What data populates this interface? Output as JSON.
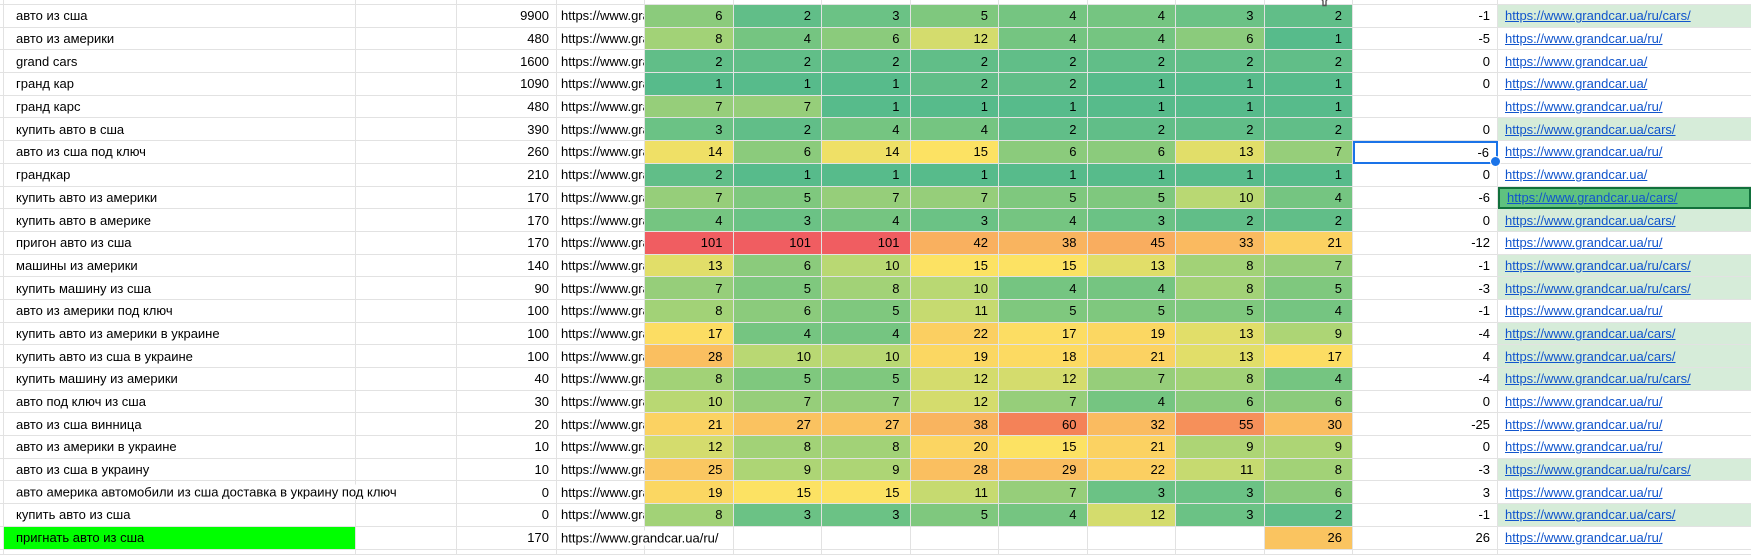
{
  "colors": {
    "gridline": "#e2e2e2",
    "link_blue": "#1155cc",
    "link_cell_tint": "#d6ecd9",
    "peer_selection_fill": "#5fc27f",
    "peer_selection_border": "#11703b",
    "active_selection_border": "#1a73e8",
    "keyword_highlight": "#00ff00"
  },
  "heatmap": {
    "ramp": [
      {
        "value": 1,
        "color": "#57bb8b"
      },
      {
        "value": 5,
        "color": "#7fc87e"
      },
      {
        "value": 10,
        "color": "#b9d873"
      },
      {
        "value": 15,
        "color": "#fce263"
      },
      {
        "value": 28,
        "color": "#fabf60"
      },
      {
        "value": 45,
        "color": "#f9ad5f"
      },
      {
        "value": 60,
        "color": "#f48258"
      },
      {
        "value": 101,
        "color": "#f05d61"
      }
    ]
  },
  "icons": {
    "filter": "funnel"
  },
  "rows": [
    {
      "keyword": "авто из сша",
      "volume": "9900",
      "source_url": "https://www.gra",
      "positions": [
        6,
        2,
        3,
        5,
        4,
        4,
        3,
        2
      ],
      "delta": "-1",
      "link": "https://www.grandcar.ua/ru/cars/",
      "link_bg": "tint"
    },
    {
      "keyword": "авто из америки",
      "volume": "480",
      "source_url": "https://www.gra",
      "positions": [
        8,
        4,
        6,
        12,
        4,
        4,
        6,
        1
      ],
      "delta": "-5",
      "link": "https://www.grandcar.ua/ru/",
      "link_bg": "plain"
    },
    {
      "keyword": "grand cars",
      "volume": "1600",
      "source_url": "https://www.gra",
      "positions": [
        2,
        2,
        2,
        2,
        2,
        2,
        2,
        2
      ],
      "delta": "0",
      "link": "https://www.grandcar.ua/",
      "link_bg": "plain"
    },
    {
      "keyword": "гранд кар",
      "volume": "1090",
      "source_url": "https://www.gra",
      "positions": [
        1,
        1,
        1,
        2,
        2,
        1,
        1,
        1
      ],
      "delta": "0",
      "link": "https://www.grandcar.ua/",
      "link_bg": "plain"
    },
    {
      "keyword": "гранд карс",
      "volume": "480",
      "source_url": "https://www.gra",
      "positions": [
        7,
        7,
        1,
        1,
        1,
        1,
        1,
        1
      ],
      "delta": "",
      "link": "https://www.grandcar.ua/ru/",
      "link_bg": "plain"
    },
    {
      "keyword": "купить авто в сша",
      "volume": "390",
      "source_url": "https://www.gra",
      "positions": [
        3,
        2,
        4,
        4,
        2,
        2,
        2,
        2
      ],
      "delta": "0",
      "link": "https://www.grandcar.ua/cars/",
      "link_bg": "tint"
    },
    {
      "keyword": "авто из сша под ключ",
      "volume": "260",
      "source_url": "https://www.gra",
      "positions": [
        14,
        6,
        14,
        15,
        6,
        6,
        13,
        7
      ],
      "delta": "-6",
      "link": "https://www.grandcar.ua/ru/",
      "link_bg": "plain",
      "delta_selected": true
    },
    {
      "keyword": "грандкар",
      "volume": "210",
      "source_url": "https://www.gra",
      "positions": [
        2,
        1,
        1,
        1,
        1,
        1,
        1,
        1
      ],
      "delta": "0",
      "link": "https://www.grandcar.ua/",
      "link_bg": "plain"
    },
    {
      "keyword": "купить авто из америки",
      "volume": "170",
      "source_url": "https://www.gra",
      "positions": [
        7,
        5,
        7,
        7,
        5,
        5,
        10,
        4
      ],
      "delta": "-6",
      "link": "https://www.grandcar.ua/cars/",
      "link_bg": "peer"
    },
    {
      "keyword": "купить авто в америке",
      "volume": "170",
      "source_url": "https://www.gra",
      "positions": [
        4,
        3,
        4,
        3,
        4,
        3,
        2,
        2
      ],
      "delta": "0",
      "link": "https://www.grandcar.ua/cars/",
      "link_bg": "tint"
    },
    {
      "keyword": "пригон авто из сша",
      "volume": "170",
      "source_url": "https://www.gra",
      "positions": [
        101,
        101,
        101,
        42,
        38,
        45,
        33,
        21
      ],
      "delta": "-12",
      "link": "https://www.grandcar.ua/ru/",
      "link_bg": "plain"
    },
    {
      "keyword": "машины из америки",
      "volume": "140",
      "source_url": "https://www.gra",
      "positions": [
        13,
        6,
        10,
        15,
        15,
        13,
        8,
        7
      ],
      "delta": "-1",
      "link": "https://www.grandcar.ua/ru/cars/",
      "link_bg": "tint"
    },
    {
      "keyword": "купить машину из сша",
      "volume": "90",
      "source_url": "https://www.gra",
      "positions": [
        7,
        5,
        8,
        10,
        4,
        4,
        8,
        5
      ],
      "delta": "-3",
      "link": "https://www.grandcar.ua/ru/cars/",
      "link_bg": "tint"
    },
    {
      "keyword": "авто из америки под ключ",
      "volume": "100",
      "source_url": "https://www.gra",
      "positions": [
        8,
        6,
        5,
        11,
        5,
        5,
        5,
        4
      ],
      "delta": "-1",
      "link": "https://www.grandcar.ua/ru/",
      "link_bg": "plain"
    },
    {
      "keyword": "купить авто из америки в украине",
      "volume": "100",
      "source_url": "https://www.gra",
      "positions": [
        17,
        4,
        4,
        22,
        17,
        19,
        13,
        9
      ],
      "delta": "-4",
      "link": "https://www.grandcar.ua/cars/",
      "link_bg": "tint"
    },
    {
      "keyword": "купить авто из сша в украине",
      "volume": "100",
      "source_url": "https://www.gra",
      "positions": [
        28,
        10,
        10,
        19,
        18,
        21,
        13,
        17
      ],
      "delta": "4",
      "link": "https://www.grandcar.ua/cars/",
      "link_bg": "tint"
    },
    {
      "keyword": "купить машину из америки",
      "volume": "40",
      "source_url": "https://www.gra",
      "positions": [
        8,
        5,
        5,
        12,
        12,
        7,
        8,
        4
      ],
      "delta": "-4",
      "link": "https://www.grandcar.ua/ru/cars/",
      "link_bg": "tint"
    },
    {
      "keyword": "авто под ключ из сша",
      "volume": "30",
      "source_url": "https://www.gra",
      "positions": [
        10,
        7,
        7,
        12,
        7,
        4,
        6,
        6
      ],
      "delta": "0",
      "link": "https://www.grandcar.ua/ru/",
      "link_bg": "plain"
    },
    {
      "keyword": "авто из сша винница",
      "volume": "20",
      "source_url": "https://www.gra",
      "positions": [
        21,
        27,
        27,
        38,
        60,
        32,
        55,
        30
      ],
      "delta": "-25",
      "link": "https://www.grandcar.ua/ru/",
      "link_bg": "plain"
    },
    {
      "keyword": "авто из америки в украине",
      "volume": "10",
      "source_url": "https://www.gra",
      "positions": [
        12,
        8,
        8,
        20,
        15,
        21,
        9,
        9
      ],
      "delta": "0",
      "link": "https://www.grandcar.ua/ru/",
      "link_bg": "plain"
    },
    {
      "keyword": "авто из сша в украину",
      "volume": "10",
      "source_url": "https://www.gra",
      "positions": [
        25,
        9,
        9,
        28,
        29,
        22,
        11,
        8
      ],
      "delta": "-3",
      "link": "https://www.grandcar.ua/ru/cars/",
      "link_bg": "tint"
    },
    {
      "keyword": "авто америка автомобили из сша доставка в украину под ключ",
      "volume": "0",
      "source_url": "https://www.gra",
      "positions": [
        19,
        15,
        15,
        11,
        7,
        3,
        3,
        6
      ],
      "delta": "3",
      "link": "https://www.grandcar.ua/ru/",
      "link_bg": "plain",
      "keyword_spill": true
    },
    {
      "keyword": "купить авто из сша",
      "volume": "0",
      "source_url": "https://www.gra",
      "positions": [
        8,
        3,
        3,
        5,
        4,
        12,
        3,
        2
      ],
      "delta": "-1",
      "link": "https://www.grandcar.ua/cars/",
      "link_bg": "tint"
    },
    {
      "keyword": "пригнать авто из сша",
      "volume": "170",
      "source_url": "https://www.grandcar.ua/ru/",
      "positions": [
        null,
        null,
        null,
        null,
        null,
        null,
        null,
        26
      ],
      "delta": "26",
      "link": "https://www.grandcar.ua/ru/",
      "link_bg": "plain",
      "keyword_highlight": true,
      "url_spill": true
    }
  ]
}
